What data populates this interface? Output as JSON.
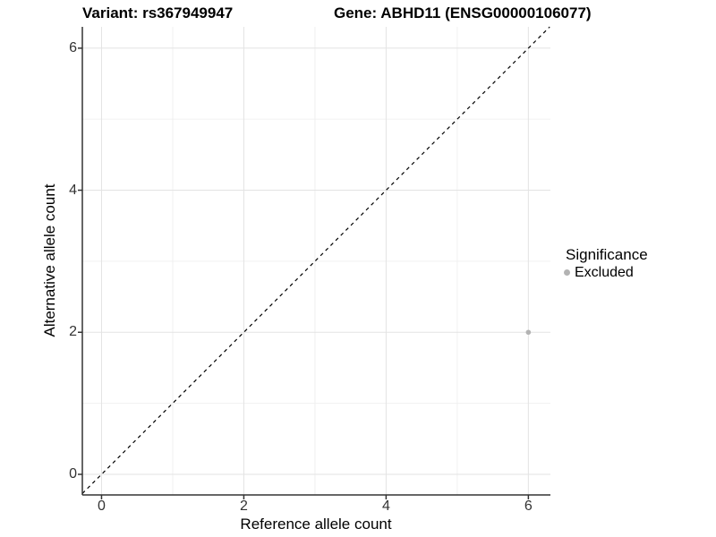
{
  "chart_data": {
    "type": "scatter",
    "title_left": "Variant: rs367949947",
    "title_right": "Gene: ABHD11 (ENSG00000106077)",
    "xlabel": "Reference allele count",
    "ylabel": "Alternative allele count",
    "xlim": [
      -0.27,
      6.31
    ],
    "ylim": [
      -0.29,
      6.3
    ],
    "major_ticks_x": [
      0,
      2,
      4,
      6
    ],
    "major_ticks_y": [
      0,
      2,
      4,
      6
    ],
    "minor_ticks_x": [
      1,
      3,
      5
    ],
    "minor_ticks_y": [
      1,
      3,
      5
    ],
    "grid": true,
    "identity_line": {
      "style": "dashed",
      "slope": 1,
      "intercept": 0,
      "color": "#000000"
    },
    "series": [
      {
        "name": "Excluded",
        "color": "#b3b3b3",
        "points": [
          {
            "x": 6,
            "y": 2
          }
        ]
      }
    ],
    "legend": {
      "title": "Significance",
      "position": "right",
      "items": [
        {
          "label": "Excluded",
          "color": "#b3b3b3"
        }
      ]
    }
  },
  "colors": {
    "grid_major": "#e3e3e3",
    "grid_minor": "#f0f0f0",
    "axis_line": "#333333",
    "tick_mark": "#333333",
    "tick_label": "#333333",
    "identity_line": "#000000",
    "point": "#b3b3b3"
  }
}
